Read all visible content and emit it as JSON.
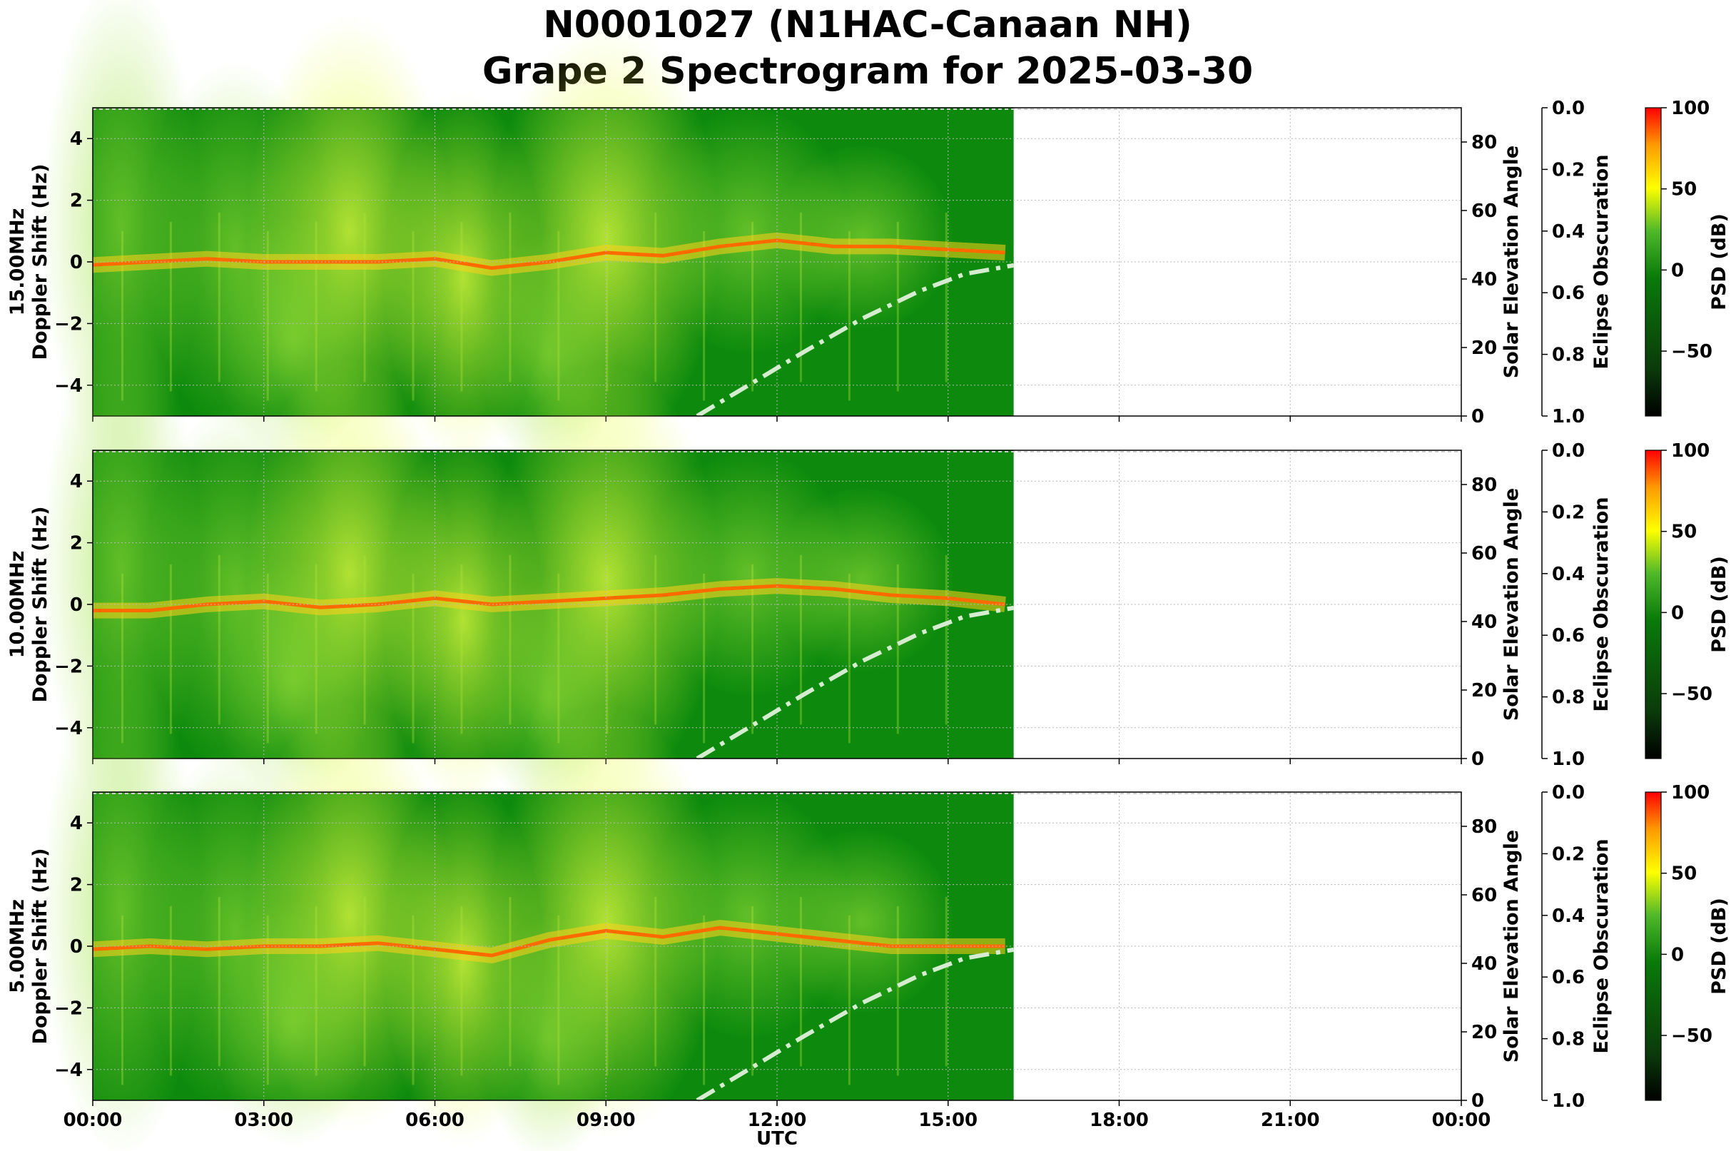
{
  "title_line1": "N0001027 (N1HAC-Canaan NH)",
  "title_line2": "Grape 2 Spectrogram for 2025-03-30",
  "chart_data": {
    "type": "heatmap",
    "xlabel": "UTC",
    "x_ticks": [
      "00:00",
      "03:00",
      "06:00",
      "09:00",
      "12:00",
      "15:00",
      "18:00",
      "21:00",
      "00:00"
    ],
    "xlim_hours": [
      0,
      24
    ],
    "data_end_hour": 16.15,
    "ylabel": "Doppler Shift (Hz)",
    "ylim": [
      -5,
      5
    ],
    "y_ticks": [
      4,
      2,
      0,
      -2,
      -4
    ],
    "right_axis_1": {
      "label": "Solar Elevation Angle",
      "ylim": [
        0,
        90
      ],
      "ticks": [
        0,
        20,
        40,
        60,
        80
      ]
    },
    "right_axis_2": {
      "label": "Eclipse Obscuration",
      "ylim": [
        1.0,
        0.0
      ],
      "ticks": [
        "0.0",
        "0.2",
        "0.4",
        "0.6",
        "0.8",
        "1.0"
      ]
    },
    "colorbar": {
      "label": "PSD (dB)",
      "range": [
        -90,
        100
      ],
      "ticks": [
        100,
        50,
        0,
        -50
      ]
    },
    "solar_elevation_curve": {
      "hours": [
        10.6,
        11.5,
        12.5,
        13.5,
        14.5,
        15.3,
        16.15
      ],
      "elevation_deg": [
        0,
        9,
        19,
        28.5,
        36.5,
        41.5,
        44
      ]
    },
    "panels": [
      {
        "frequency_label": "15.00MHz",
        "signal_trace": {
          "hours": [
            0,
            1,
            2,
            3,
            4,
            5,
            6,
            7,
            8,
            9,
            10,
            11,
            12,
            13,
            14,
            15,
            16
          ],
          "doppler_hz": [
            -0.1,
            0.0,
            0.1,
            0.0,
            0.0,
            0.0,
            0.1,
            -0.2,
            0.0,
            0.3,
            0.2,
            0.5,
            0.7,
            0.5,
            0.5,
            0.4,
            0.3
          ]
        }
      },
      {
        "frequency_label": "10.00MHz",
        "signal_trace": {
          "hours": [
            0,
            1,
            2,
            3,
            4,
            5,
            6,
            7,
            8,
            9,
            10,
            11,
            12,
            13,
            14,
            15,
            16
          ],
          "doppler_hz": [
            -0.2,
            -0.2,
            0.0,
            0.1,
            -0.1,
            0.0,
            0.2,
            0.0,
            0.1,
            0.2,
            0.3,
            0.5,
            0.6,
            0.5,
            0.3,
            0.2,
            0.0
          ]
        }
      },
      {
        "frequency_label": "5.00MHz",
        "signal_trace": {
          "hours": [
            0,
            1,
            2,
            3,
            4,
            5,
            6,
            7,
            8,
            9,
            10,
            11,
            12,
            13,
            14,
            15,
            16
          ],
          "doppler_hz": [
            -0.1,
            0.0,
            -0.1,
            0.0,
            0.0,
            0.1,
            -0.1,
            -0.3,
            0.2,
            0.5,
            0.3,
            0.6,
            0.4,
            0.2,
            0.0,
            0.0,
            0.0
          ]
        }
      }
    ]
  }
}
